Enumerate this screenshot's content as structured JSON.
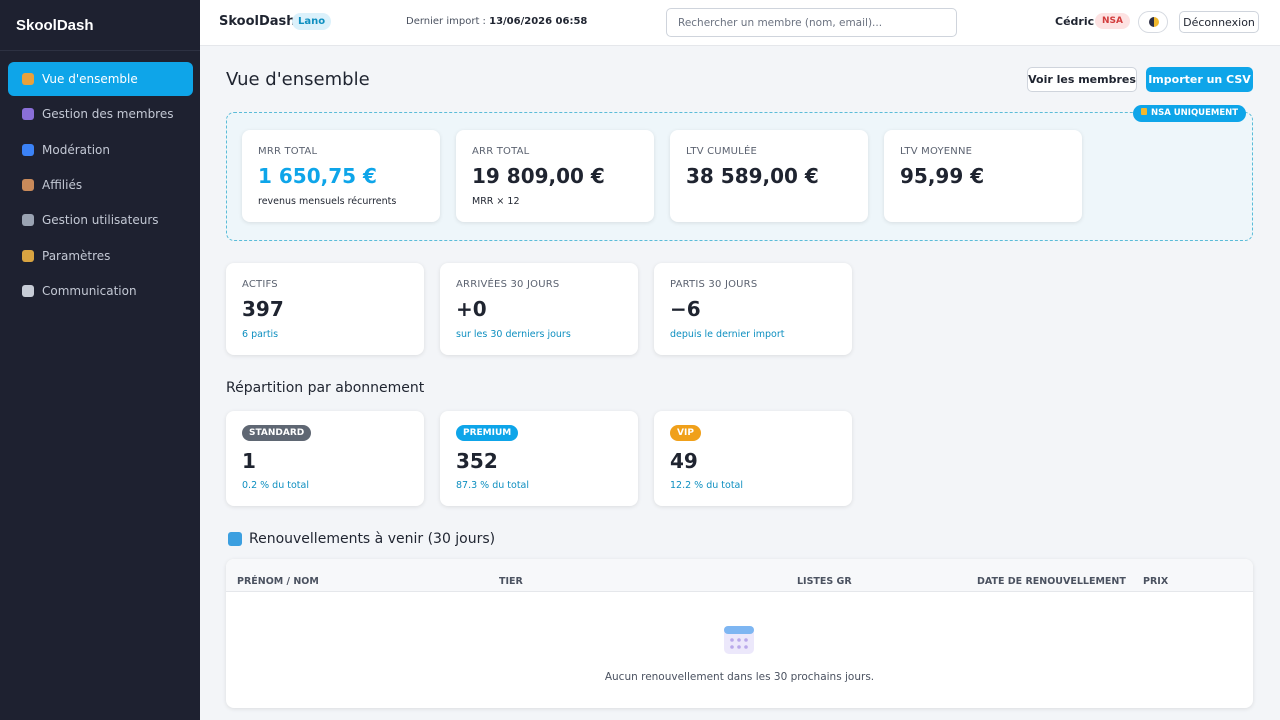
{
  "sidebar": {
    "brand": "SkoolDash",
    "nav": [
      "Vue d'ensemble",
      "Gestion des membres",
      "Modération",
      "Affiliés",
      "Gestion utilisateurs",
      "Paramètres",
      "Communication"
    ]
  },
  "topbar": {
    "title": "SkoolDash",
    "badge": "Lano",
    "import_label": "Dernier import :",
    "import_value": "13/06/2026 06:58",
    "search": "Rechercher un membre (nom, email)...",
    "user": "Cédric",
    "user_badge": "NSA",
    "logout": "Déconnexion"
  },
  "page": {
    "title": "Vue d'ensemble",
    "buttons": [
      "Voir les membres",
      "Importer un CSV"
    ]
  },
  "finance": {
    "badge": "NSA UNIQUEMENT",
    "cards": [
      {
        "label": "MRR TOTAL",
        "value": "1 650,75 €",
        "note": "revenus mensuels récurrents"
      },
      {
        "label": "ARR TOTAL",
        "value": "19 809,00 €",
        "note": "MRR × 12"
      },
      {
        "label": "LTV CUMULÉE",
        "value": "38 589,00 €"
      },
      {
        "label": "LTV MOYENNE",
        "value": "95,99 €"
      }
    ]
  },
  "stats": [
    {
      "label": "ACTIFS",
      "value": "397",
      "note": "6 partis"
    },
    {
      "label": "ARRIVÉES 30 JOURS",
      "value": "+0",
      "note": "sur les 30 derniers jours"
    },
    {
      "label": "PARTIS 30 JOURS",
      "value": "−6",
      "note": "depuis le dernier import"
    }
  ],
  "tiers": {
    "title": "Répartition par abonnement",
    "cards": [
      {
        "label": "STANDARD",
        "value": "1",
        "note": "0.2 % du total"
      },
      {
        "label": "PREMIUM",
        "value": "352",
        "note": "87.3 % du total"
      },
      {
        "label": "VIP",
        "value": "49",
        "note": "12.2 % du total"
      }
    ]
  },
  "renewals": {
    "title": "Renouvellements à venir (30 jours)",
    "columns": [
      "PRÉNOM / NOM",
      "TIER",
      "LISTES GR",
      "DATE DE RENOUVELLEMENT",
      "PRIX"
    ],
    "empty": "Aucun renouvellement dans les 30 prochains jours."
  }
}
